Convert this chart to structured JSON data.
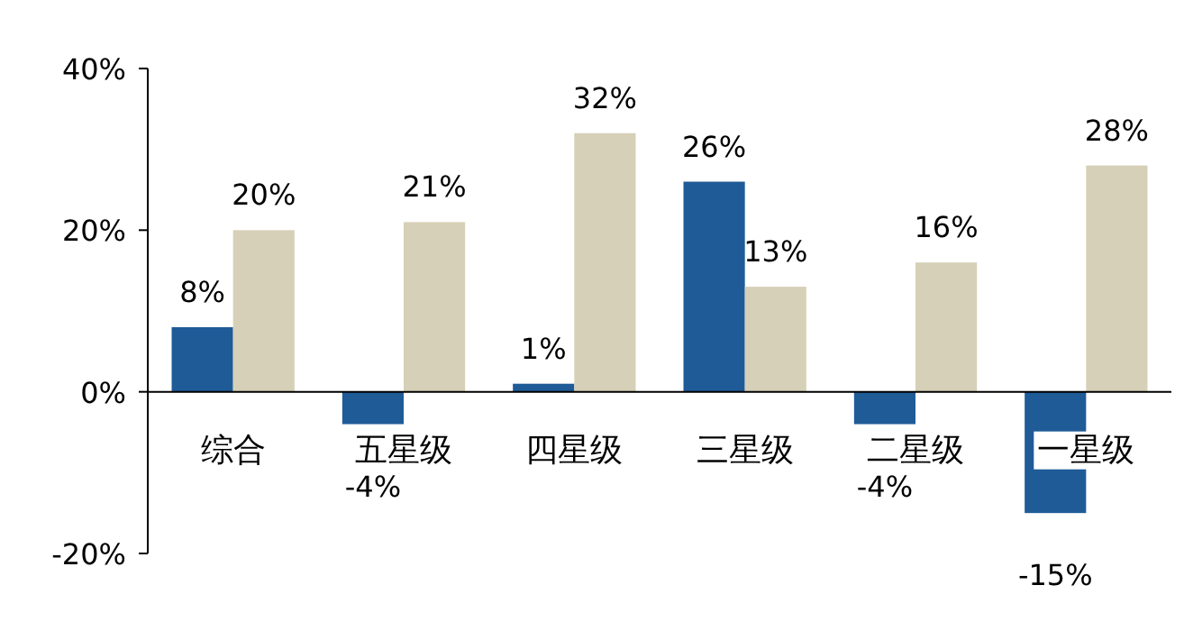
{
  "chart_data": {
    "type": "bar",
    "categories": [
      "综合",
      "五星级",
      "四星级",
      "三星级",
      "二星级",
      "一星级"
    ],
    "series": [
      {
        "color": "#1f5b97",
        "values": [
          8,
          -4,
          1,
          26,
          -4,
          -15
        ],
        "value_labels": [
          "8%",
          "-4%",
          "1%",
          "26%",
          "-4%",
          "-15%"
        ]
      },
      {
        "color": "#d5d0b7",
        "values": [
          20,
          21,
          32,
          13,
          16,
          28
        ],
        "value_labels": [
          "20%",
          "21%",
          "32%",
          "13%",
          "16%",
          "28%"
        ]
      }
    ],
    "ylim": [
      -20,
      40
    ],
    "yticks": [
      {
        "value": -20,
        "label": "-20%"
      },
      {
        "value": 0,
        "label": "0%"
      },
      {
        "value": 20,
        "label": "20%"
      },
      {
        "value": 40,
        "label": "40%"
      }
    ],
    "grid": false
  }
}
